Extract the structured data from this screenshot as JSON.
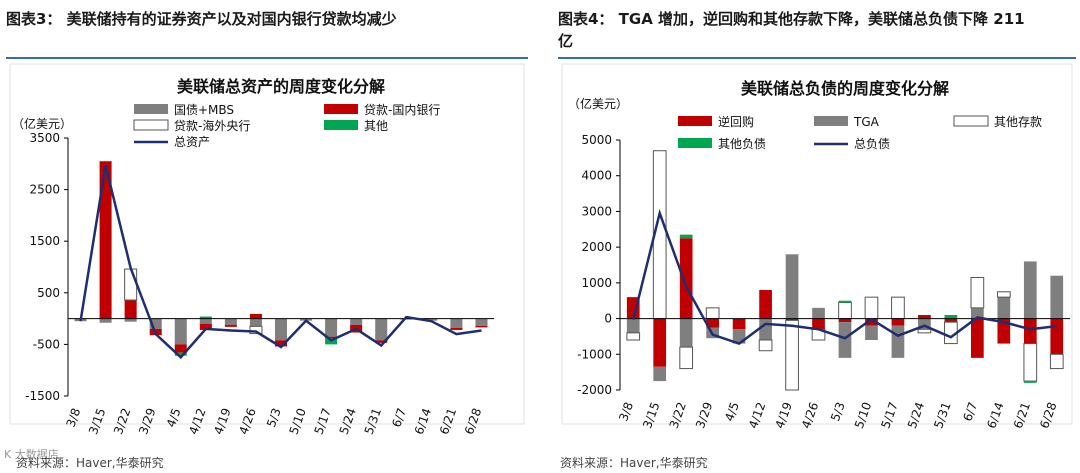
{
  "left_caption": "图表3： 美联储持有的证券资产以及对国内银行贷款均减少",
  "right_caption_line1": "图表4： TGA 增加，逆回购和其他存款下降，美联储总负债下降 211",
  "right_caption_line2": "亿",
  "left_source": "资料来源：Haver,华泰研究",
  "right_source": "资料来源：Haver,华泰研究",
  "watermark": "K 大数据店",
  "chart_data": [
    {
      "type": "bar",
      "title": "美联储总资产的周度变化分解",
      "unit_label": "（亿美元）",
      "ylim": [
        -1500,
        3500
      ],
      "yticks": [
        -1500,
        -500,
        500,
        1500,
        2500,
        3500
      ],
      "categories": [
        "3/8",
        "3/15",
        "3/22",
        "3/29",
        "4/5",
        "4/12",
        "4/19",
        "4/26",
        "5/3",
        "5/10",
        "5/17",
        "5/24",
        "5/31",
        "6/7",
        "6/14",
        "6/21",
        "6/28"
      ],
      "series": [
        {
          "name": "国债+MBS",
          "color": "#7f7f7f",
          "kind": "bar",
          "values": [
            -50,
            -80,
            -60,
            -200,
            -500,
            -100,
            -120,
            -150,
            -420,
            -40,
            -350,
            -120,
            -420,
            -20,
            -40,
            -180,
            -140
          ]
        },
        {
          "name": "贷款-国内银行",
          "color": "#c00000",
          "kind": "bar",
          "values": [
            0,
            3050,
            360,
            -120,
            -160,
            -120,
            -40,
            90,
            -120,
            0,
            -30,
            -150,
            -50,
            0,
            0,
            -40,
            -30
          ]
        },
        {
          "name": "贷款-海外央行",
          "color": "#ffffff",
          "kind": "bar",
          "values": [
            0,
            0,
            600,
            0,
            0,
            0,
            0,
            -140,
            0,
            0,
            0,
            0,
            0,
            0,
            0,
            0,
            0
          ]
        },
        {
          "name": "其他",
          "color": "#00a651",
          "kind": "bar",
          "values": [
            0,
            0,
            0,
            0,
            -60,
            40,
            0,
            0,
            0,
            0,
            -120,
            0,
            0,
            0,
            0,
            0,
            0
          ]
        },
        {
          "name": "总资产",
          "color": "#1f2e6e",
          "kind": "line",
          "values": [
            -50,
            2970,
            980,
            -300,
            -750,
            -200,
            -230,
            -250,
            -550,
            -40,
            -420,
            -200,
            -520,
            30,
            -50,
            -300,
            -230
          ]
        }
      ]
    },
    {
      "type": "bar",
      "title": "美联储总负债的周度变化分解",
      "unit_label": "（亿美元）",
      "ylim": [
        -2000,
        5000
      ],
      "yticks": [
        -2000,
        -1000,
        0,
        1000,
        2000,
        3000,
        4000,
        5000
      ],
      "categories": [
        "3/8",
        "3/15",
        "3/22",
        "3/29",
        "4/5",
        "4/12",
        "4/19",
        "4/26",
        "5/3",
        "5/10",
        "5/17",
        "5/24",
        "5/31",
        "6/7",
        "6/14",
        "6/21",
        "6/28"
      ],
      "series": [
        {
          "name": "逆回购",
          "color": "#c00000",
          "kind": "bar",
          "values": [
            600,
            -1350,
            2250,
            -250,
            -300,
            800,
            -50,
            -300,
            -100,
            -200,
            -200,
            100,
            -100,
            -1100,
            -700,
            -700,
            -1000
          ]
        },
        {
          "name": "TGA",
          "color": "#7f7f7f",
          "kind": "bar",
          "values": [
            -400,
            -400,
            -800,
            -300,
            -400,
            -600,
            1800,
            300,
            -1000,
            -400,
            -900,
            -300,
            0,
            300,
            600,
            1600,
            1200
          ]
        },
        {
          "name": "其他存款",
          "color": "#ffffff",
          "kind": "bar",
          "values": [
            -200,
            4700,
            -600,
            300,
            0,
            -300,
            -1950,
            -300,
            450,
            600,
            600,
            -100,
            -600,
            850,
            150,
            -1050,
            -400
          ]
        },
        {
          "name": "其他负债",
          "color": "#00a651",
          "kind": "bar",
          "values": [
            0,
            0,
            100,
            0,
            0,
            0,
            0,
            0,
            50,
            0,
            0,
            0,
            100,
            0,
            0,
            -50,
            0
          ]
        },
        {
          "name": "总负债",
          "color": "#1f2e6e",
          "kind": "line",
          "values": [
            -30,
            2950,
            900,
            -450,
            -700,
            -150,
            -200,
            -300,
            -550,
            -20,
            -480,
            -200,
            -520,
            30,
            -100,
            -300,
            -211
          ]
        }
      ]
    }
  ]
}
